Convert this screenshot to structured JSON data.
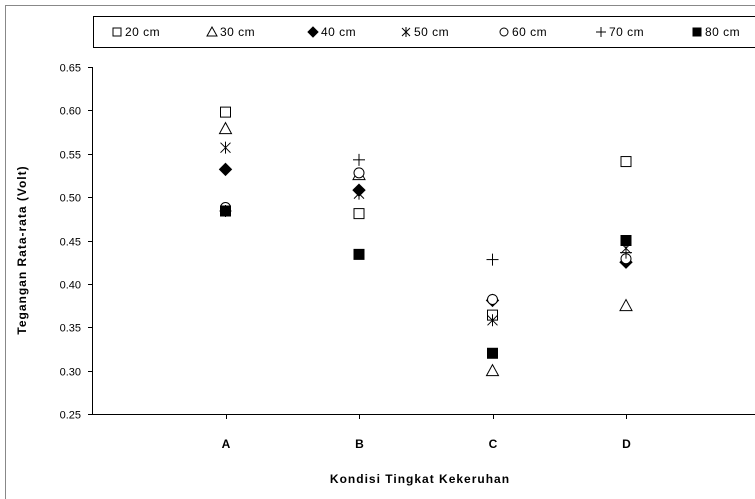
{
  "chart_data": {
    "type": "scatter",
    "categories": [
      "A",
      "B",
      "C",
      "D"
    ],
    "xlabel": "Kondisi Tingkat Kekeruhan",
    "ylabel": "Tegangan Rata-rata (Volt)",
    "ylim": [
      0.25,
      0.65
    ],
    "yticks": [
      "0.25",
      "0.30",
      "0.35",
      "0.40",
      "0.45",
      "0.50",
      "0.55",
      "0.60",
      "0.65"
    ],
    "legend_position": "top",
    "grid": false,
    "series": [
      {
        "name": "20 cm",
        "marker": "open-square",
        "values": [
          0.598,
          0.481,
          0.364,
          0.541
        ]
      },
      {
        "name": "30 cm",
        "marker": "open-triangle",
        "values": [
          0.579,
          0.526,
          0.3,
          0.375
        ]
      },
      {
        "name": "40 cm",
        "marker": "filled-diamond",
        "values": [
          0.532,
          0.508,
          0.381,
          0.425
        ]
      },
      {
        "name": "50 cm",
        "marker": "star",
        "values": [
          0.557,
          0.504,
          0.358,
          0.441
        ]
      },
      {
        "name": "60 cm",
        "marker": "open-circle",
        "values": [
          0.488,
          0.528,
          0.382,
          0.429
        ]
      },
      {
        "name": "70 cm",
        "marker": "plus",
        "values": [
          0.484,
          0.543,
          0.428,
          0.436
        ]
      },
      {
        "name": "80 cm",
        "marker": "filled-square",
        "values": [
          0.484,
          0.434,
          0.32,
          0.45
        ]
      }
    ]
  }
}
